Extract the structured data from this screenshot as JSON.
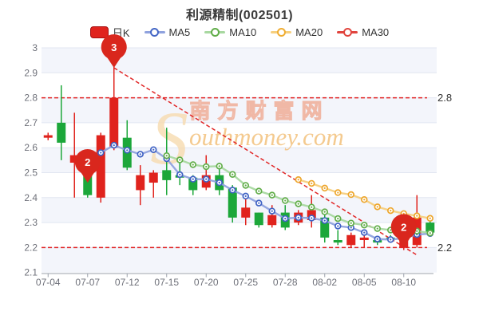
{
  "header": {
    "title": "利源精制(002501)"
  },
  "legend": {
    "items": [
      {
        "label": "日K",
        "type": "candle",
        "color": "#e0231d",
        "border": "#a50f0f"
      },
      {
        "label": "MA5",
        "type": "line",
        "color": "#4668c6",
        "line": "#8fa2de"
      },
      {
        "label": "MA10",
        "type": "line",
        "color": "#61ad49",
        "line": "#a8d8a0"
      },
      {
        "label": "MA20",
        "type": "line",
        "color": "#efad33",
        "line": "#f6cf7e"
      },
      {
        "label": "MA30",
        "type": "line",
        "color": "#e1453e",
        "line": "#e1453e"
      }
    ]
  },
  "watermark": {
    "brand": "南方财富网",
    "initial": "S",
    "domain": "outhmoney.com"
  },
  "chart_data": {
    "type": "candlestick",
    "title": "利源精制(002501)",
    "ylim": [
      2.1,
      3.0
    ],
    "y_axis_labels": [
      "3",
      "2.9",
      "2.8",
      "2.7",
      "2.6",
      "2.5",
      "2.4",
      "2.3",
      "2.2",
      "2.1"
    ],
    "x_axis_labels": [
      "07-04",
      "07-07",
      "07-12",
      "07-15",
      "07-20",
      "07-25",
      "07-28",
      "08-02",
      "08-05",
      "08-10"
    ],
    "x_label_indices": [
      0,
      3,
      6,
      9,
      12,
      15,
      18,
      21,
      24,
      27
    ],
    "grid": {
      "horizontal_gridlines": true,
      "alt_bands": true
    },
    "dates": [
      "07-04",
      "07-05",
      "07-06",
      "07-07",
      "07-08",
      "07-11",
      "07-12",
      "07-13",
      "07-14",
      "07-15",
      "07-18",
      "07-19",
      "07-20",
      "07-21",
      "07-22",
      "07-25",
      "07-26",
      "07-27",
      "07-28",
      "07-29",
      "08-01",
      "08-02",
      "08-03",
      "08-04",
      "08-05",
      "08-08",
      "08-09",
      "08-10",
      "08-11",
      "08-12"
    ],
    "candles": [
      {
        "date": "07-04",
        "open": 2.64,
        "close": 2.65,
        "high": 2.66,
        "low": 2.63
      },
      {
        "date": "07-05",
        "open": 2.7,
        "close": 2.62,
        "high": 2.85,
        "low": 2.55
      },
      {
        "date": "07-06",
        "open": 2.54,
        "close": 2.57,
        "high": 2.74,
        "low": 2.4
      },
      {
        "date": "07-07",
        "open": 2.57,
        "close": 2.41,
        "high": 2.58,
        "low": 2.4
      },
      {
        "date": "07-08",
        "open": 2.4,
        "close": 2.65,
        "high": 2.66,
        "low": 2.38
      },
      {
        "date": "07-11",
        "open": 2.6,
        "close": 2.8,
        "high": 2.93,
        "low": 2.59
      },
      {
        "date": "07-12",
        "open": 2.64,
        "close": 2.52,
        "high": 2.71,
        "low": 2.51
      },
      {
        "date": "07-13",
        "open": 2.43,
        "close": 2.49,
        "high": 2.53,
        "low": 2.37
      },
      {
        "date": "07-14",
        "open": 2.46,
        "close": 2.5,
        "high": 2.51,
        "low": 2.4
      },
      {
        "date": "07-15",
        "open": 2.51,
        "close": 2.47,
        "high": 2.68,
        "low": 2.41
      },
      {
        "date": "07-18",
        "open": 2.49,
        "close": 2.48,
        "high": 2.54,
        "low": 2.45
      },
      {
        "date": "07-19",
        "open": 2.48,
        "close": 2.43,
        "high": 2.49,
        "low": 2.41
      },
      {
        "date": "07-20",
        "open": 2.44,
        "close": 2.49,
        "high": 2.57,
        "low": 2.43
      },
      {
        "date": "07-21",
        "open": 2.49,
        "close": 2.43,
        "high": 2.54,
        "low": 2.41
      },
      {
        "date": "07-22",
        "open": 2.44,
        "close": 2.32,
        "high": 2.45,
        "low": 2.3
      },
      {
        "date": "07-25",
        "open": 2.32,
        "close": 2.36,
        "high": 2.4,
        "low": 2.29
      },
      {
        "date": "07-26",
        "open": 2.34,
        "close": 2.29,
        "high": 2.34,
        "low": 2.28
      },
      {
        "date": "07-27",
        "open": 2.29,
        "close": 2.33,
        "high": 2.37,
        "low": 2.28
      },
      {
        "date": "07-28",
        "open": 2.34,
        "close": 2.28,
        "high": 2.37,
        "low": 2.27
      },
      {
        "date": "07-29",
        "open": 2.3,
        "close": 2.34,
        "high": 2.35,
        "low": 2.29
      },
      {
        "date": "08-01",
        "open": 2.31,
        "close": 2.35,
        "high": 2.41,
        "low": 2.28
      },
      {
        "date": "08-02",
        "open": 2.32,
        "close": 2.24,
        "high": 2.33,
        "low": 2.22
      },
      {
        "date": "08-03",
        "open": 2.23,
        "close": 2.22,
        "high": 2.27,
        "low": 2.21
      },
      {
        "date": "08-04",
        "open": 2.21,
        "close": 2.25,
        "high": 2.26,
        "low": 2.2
      },
      {
        "date": "08-05",
        "open": 2.23,
        "close": 2.24,
        "high": 2.26,
        "low": 2.2
      },
      {
        "date": "08-08",
        "open": 2.23,
        "close": 2.22,
        "high": 2.24,
        "low": 2.21
      },
      {
        "date": "08-09",
        "open": 2.24,
        "close": 2.23,
        "high": 2.25,
        "low": 2.22
      },
      {
        "date": "08-10",
        "open": 2.2,
        "close": 2.25,
        "high": 2.26,
        "low": 2.19
      },
      {
        "date": "08-11",
        "open": 2.21,
        "close": 2.32,
        "high": 2.41,
        "low": 2.2
      },
      {
        "date": "08-12",
        "open": 2.3,
        "close": 2.26,
        "high": 2.31,
        "low": 2.25
      }
    ],
    "series": [
      {
        "name": "MA5",
        "line_color": "#8fa2de",
        "marker_color": "#3f62c4",
        "values": [
          null,
          null,
          null,
          null,
          2.58,
          2.61,
          2.59,
          2.574,
          2.592,
          2.556,
          2.492,
          2.474,
          2.474,
          2.46,
          2.43,
          2.406,
          2.378,
          2.346,
          2.316,
          2.32,
          2.318,
          2.308,
          2.286,
          2.28,
          2.26,
          2.234,
          2.232,
          2.238,
          2.252,
          2.256
        ]
      },
      {
        "name": "MA10",
        "line_color": "#a8d8a0",
        "marker_color": "#61ad49",
        "values": [
          null,
          null,
          null,
          null,
          null,
          null,
          null,
          null,
          null,
          2.568,
          2.551,
          2.532,
          2.524,
          2.526,
          2.493,
          2.449,
          2.426,
          2.41,
          2.388,
          2.375,
          2.362,
          2.343,
          2.316,
          2.298,
          2.29,
          2.276,
          2.27,
          2.262,
          2.266,
          2.258
        ]
      },
      {
        "name": "MA20",
        "line_color": "#f6cf7e",
        "marker_color": "#eda62c",
        "values": [
          null,
          null,
          null,
          null,
          null,
          null,
          null,
          null,
          null,
          null,
          null,
          null,
          null,
          null,
          null,
          null,
          null,
          null,
          null,
          2.472,
          2.457,
          2.438,
          2.42,
          2.412,
          2.392,
          2.363,
          2.348,
          2.336,
          2.327,
          2.317
        ]
      },
      {
        "name": "MA30",
        "line_color": "#e1453e",
        "marker_color": "#e1453e",
        "values": [
          null,
          null,
          null,
          null,
          null,
          null,
          null,
          null,
          null,
          null,
          null,
          null,
          null,
          null,
          null,
          null,
          null,
          null,
          null,
          null,
          null,
          null,
          null,
          null,
          null,
          null,
          null,
          null,
          null,
          null
        ]
      }
    ],
    "ref_lines": [
      {
        "value": 2.8,
        "label": "2.8"
      },
      {
        "value": 2.2,
        "label": "2.2"
      }
    ],
    "trend_line": {
      "from": {
        "date": "07-11",
        "price": 2.92
      },
      "to": {
        "date": "08-11",
        "price": 2.17
      }
    },
    "markers": [
      {
        "text": "3",
        "date": "07-11",
        "price": 2.92
      },
      {
        "text": "2",
        "date": "07-07",
        "price": 2.46
      },
      {
        "text": "2",
        "date": "08-10",
        "price": 2.2
      }
    ],
    "colors": {
      "up": "#e0231d",
      "down": "#1ca73a",
      "grid": "#e2e6f1",
      "band": "#f3f5fb",
      "axis_label": "#6e7079",
      "axis_line": "#9ba1ab",
      "ref_line": "#e12626",
      "ref_label": "#333333",
      "balloon": "#d9271d",
      "watermark_cn_stroke": "#f0ae98",
      "watermark_cn_fill": "#fdf3ee",
      "watermark_en": "#f3c17c",
      "watermark_s": "#f7ddb4"
    }
  }
}
